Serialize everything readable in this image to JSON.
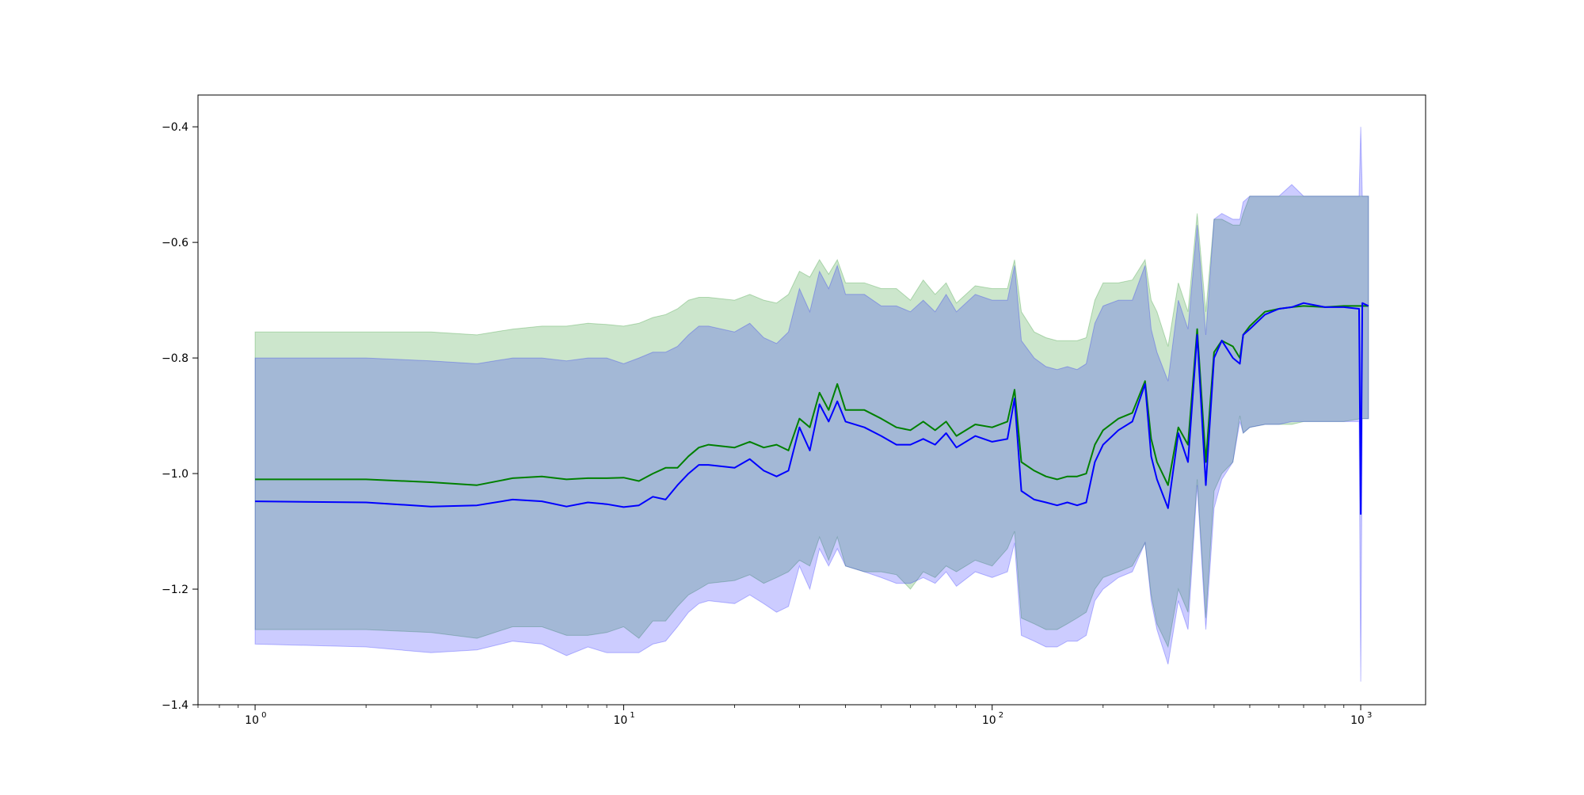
{
  "chart_data": {
    "type": "line",
    "title": "",
    "xlabel": "",
    "ylabel": "",
    "xscale": "log",
    "xlim": [
      0.7,
      1500
    ],
    "ylim": [
      -1.4,
      -0.345
    ],
    "x_ticks": [
      {
        "base": "10",
        "exp": "0",
        "value": 1
      },
      {
        "base": "10",
        "exp": "1",
        "value": 10
      },
      {
        "base": "10",
        "exp": "2",
        "value": 100
      },
      {
        "base": "10",
        "exp": "3",
        "value": 1000
      }
    ],
    "y_ticks": [
      {
        "label": "−0.4",
        "value": -0.4
      },
      {
        "label": "−0.6",
        "value": -0.6
      },
      {
        "label": "−0.8",
        "value": -0.8
      },
      {
        "label": "−1.0",
        "value": -1.0
      },
      {
        "label": "−1.2",
        "value": -1.2
      },
      {
        "label": "−1.4",
        "value": -1.4
      }
    ],
    "grid": false,
    "legend": "none",
    "series": [
      {
        "color": "#008000",
        "band_color": "#008000",
        "band_opacity": 0.2,
        "x": [
          1,
          2,
          3,
          4,
          5,
          6,
          7,
          8,
          9,
          10,
          11,
          12,
          13,
          14,
          15,
          16,
          17,
          20,
          22,
          24,
          26,
          28,
          30,
          32,
          34,
          36,
          38,
          40,
          45,
          50,
          55,
          60,
          65,
          70,
          75,
          80,
          90,
          100,
          110,
          115,
          120,
          130,
          140,
          150,
          160,
          170,
          180,
          190,
          200,
          220,
          240,
          260,
          270,
          280,
          300,
          320,
          340,
          360,
          380,
          400,
          420,
          450,
          470,
          480,
          500,
          550,
          600,
          650,
          700,
          800,
          900,
          1000,
          1050
        ],
        "y": [
          -1.01,
          -1.01,
          -1.015,
          -1.02,
          -1.008,
          -1.005,
          -1.01,
          -1.008,
          -1.008,
          -1.007,
          -1.013,
          -1.0,
          -0.99,
          -0.99,
          -0.97,
          -0.955,
          -0.95,
          -0.955,
          -0.945,
          -0.955,
          -0.95,
          -0.96,
          -0.905,
          -0.92,
          -0.86,
          -0.89,
          -0.845,
          -0.89,
          -0.89,
          -0.905,
          -0.92,
          -0.925,
          -0.91,
          -0.925,
          -0.91,
          -0.935,
          -0.915,
          -0.92,
          -0.91,
          -0.855,
          -0.98,
          -0.995,
          -1.005,
          -1.01,
          -1.005,
          -1.005,
          -1.0,
          -0.95,
          -0.925,
          -0.905,
          -0.895,
          -0.84,
          -0.94,
          -0.98,
          -1.02,
          -0.92,
          -0.95,
          -0.75,
          -0.98,
          -0.79,
          -0.77,
          -0.78,
          -0.8,
          -0.76,
          -0.745,
          -0.72,
          -0.715,
          -0.712,
          -0.71,
          -0.712,
          -0.71,
          -0.71,
          -0.71
        ],
        "lower": [
          -1.27,
          -1.27,
          -1.275,
          -1.285,
          -1.265,
          -1.265,
          -1.28,
          -1.28,
          -1.275,
          -1.265,
          -1.285,
          -1.255,
          -1.255,
          -1.23,
          -1.21,
          -1.2,
          -1.19,
          -1.185,
          -1.175,
          -1.19,
          -1.18,
          -1.17,
          -1.15,
          -1.16,
          -1.11,
          -1.15,
          -1.11,
          -1.16,
          -1.17,
          -1.17,
          -1.175,
          -1.2,
          -1.17,
          -1.18,
          -1.16,
          -1.17,
          -1.15,
          -1.16,
          -1.13,
          -1.1,
          -1.25,
          -1.26,
          -1.27,
          -1.27,
          -1.26,
          -1.25,
          -1.24,
          -1.2,
          -1.18,
          -1.17,
          -1.16,
          -1.12,
          -1.21,
          -1.26,
          -1.3,
          -1.2,
          -1.24,
          -1.01,
          -1.25,
          -1.03,
          -1.0,
          -0.98,
          -0.9,
          -0.93,
          -0.92,
          -0.915,
          -0.915,
          -0.915,
          -0.91,
          -0.91,
          -0.91,
          -0.905,
          -0.905
        ],
        "upper": [
          -0.755,
          -0.755,
          -0.755,
          -0.76,
          -0.75,
          -0.745,
          -0.745,
          -0.74,
          -0.742,
          -0.745,
          -0.74,
          -0.73,
          -0.725,
          -0.715,
          -0.7,
          -0.695,
          -0.695,
          -0.7,
          -0.69,
          -0.7,
          -0.705,
          -0.69,
          -0.65,
          -0.66,
          -0.63,
          -0.655,
          -0.63,
          -0.67,
          -0.67,
          -0.68,
          -0.68,
          -0.7,
          -0.665,
          -0.69,
          -0.67,
          -0.705,
          -0.675,
          -0.68,
          -0.68,
          -0.63,
          -0.72,
          -0.755,
          -0.765,
          -0.77,
          -0.77,
          -0.77,
          -0.765,
          -0.7,
          -0.67,
          -0.67,
          -0.665,
          -0.63,
          -0.7,
          -0.72,
          -0.78,
          -0.67,
          -0.72,
          -0.55,
          -0.72,
          -0.56,
          -0.56,
          -0.57,
          -0.57,
          -0.55,
          -0.52,
          -0.52,
          -0.52,
          -0.52,
          -0.52,
          -0.52,
          -0.52,
          -0.52,
          -0.52
        ]
      },
      {
        "color": "#0000ff",
        "band_color": "#0000ff",
        "band_opacity": 0.2,
        "x": [
          1,
          2,
          3,
          4,
          5,
          6,
          7,
          8,
          9,
          10,
          11,
          12,
          13,
          14,
          15,
          16,
          17,
          20,
          22,
          24,
          26,
          28,
          30,
          32,
          34,
          36,
          38,
          40,
          45,
          50,
          55,
          60,
          65,
          70,
          75,
          80,
          90,
          100,
          110,
          115,
          120,
          130,
          140,
          150,
          160,
          170,
          180,
          190,
          200,
          220,
          240,
          260,
          270,
          280,
          300,
          320,
          340,
          360,
          380,
          400,
          420,
          450,
          470,
          480,
          500,
          550,
          600,
          650,
          700,
          800,
          900,
          990,
          1000,
          1010,
          1050
        ],
        "y": [
          -1.048,
          -1.05,
          -1.057,
          -1.055,
          -1.045,
          -1.048,
          -1.057,
          -1.05,
          -1.053,
          -1.058,
          -1.055,
          -1.04,
          -1.045,
          -1.02,
          -1.0,
          -0.985,
          -0.985,
          -0.99,
          -0.975,
          -0.995,
          -1.005,
          -0.995,
          -0.92,
          -0.96,
          -0.88,
          -0.91,
          -0.875,
          -0.91,
          -0.92,
          -0.935,
          -0.95,
          -0.95,
          -0.94,
          -0.95,
          -0.93,
          -0.955,
          -0.935,
          -0.945,
          -0.94,
          -0.87,
          -1.03,
          -1.045,
          -1.05,
          -1.055,
          -1.05,
          -1.055,
          -1.05,
          -0.98,
          -0.95,
          -0.925,
          -0.91,
          -0.845,
          -0.97,
          -1.01,
          -1.06,
          -0.93,
          -0.98,
          -0.76,
          -1.02,
          -0.8,
          -0.77,
          -0.8,
          -0.81,
          -0.76,
          -0.75,
          -0.725,
          -0.715,
          -0.712,
          -0.705,
          -0.712,
          -0.712,
          -0.715,
          -1.07,
          -0.705,
          -0.71
        ],
        "lower": [
          -1.295,
          -1.3,
          -1.31,
          -1.305,
          -1.29,
          -1.295,
          -1.315,
          -1.3,
          -1.31,
          -1.31,
          -1.31,
          -1.295,
          -1.29,
          -1.265,
          -1.24,
          -1.225,
          -1.22,
          -1.225,
          -1.21,
          -1.225,
          -1.24,
          -1.23,
          -1.16,
          -1.2,
          -1.13,
          -1.16,
          -1.13,
          -1.16,
          -1.17,
          -1.18,
          -1.19,
          -1.19,
          -1.18,
          -1.19,
          -1.17,
          -1.195,
          -1.17,
          -1.18,
          -1.17,
          -1.12,
          -1.28,
          -1.29,
          -1.3,
          -1.3,
          -1.29,
          -1.29,
          -1.28,
          -1.22,
          -1.2,
          -1.18,
          -1.17,
          -1.12,
          -1.22,
          -1.27,
          -1.33,
          -1.22,
          -1.27,
          -1.02,
          -1.27,
          -1.06,
          -1.01,
          -0.98,
          -0.91,
          -0.93,
          -0.92,
          -0.915,
          -0.915,
          -0.91,
          -0.91,
          -0.91,
          -0.91,
          -0.91,
          -1.36,
          -0.905,
          -0.905
        ],
        "upper": [
          -0.8,
          -0.8,
          -0.805,
          -0.81,
          -0.8,
          -0.8,
          -0.805,
          -0.8,
          -0.8,
          -0.81,
          -0.8,
          -0.79,
          -0.79,
          -0.78,
          -0.76,
          -0.745,
          -0.745,
          -0.755,
          -0.74,
          -0.765,
          -0.775,
          -0.755,
          -0.68,
          -0.72,
          -0.65,
          -0.68,
          -0.64,
          -0.69,
          -0.69,
          -0.71,
          -0.71,
          -0.72,
          -0.7,
          -0.72,
          -0.69,
          -0.72,
          -0.69,
          -0.7,
          -0.7,
          -0.64,
          -0.77,
          -0.8,
          -0.815,
          -0.82,
          -0.815,
          -0.82,
          -0.81,
          -0.74,
          -0.71,
          -0.7,
          -0.7,
          -0.64,
          -0.75,
          -0.79,
          -0.84,
          -0.7,
          -0.75,
          -0.57,
          -0.76,
          -0.56,
          -0.55,
          -0.56,
          -0.56,
          -0.53,
          -0.52,
          -0.52,
          -0.52,
          -0.5,
          -0.52,
          -0.52,
          -0.52,
          -0.52,
          -0.4,
          -0.52,
          -0.52
        ]
      }
    ]
  }
}
